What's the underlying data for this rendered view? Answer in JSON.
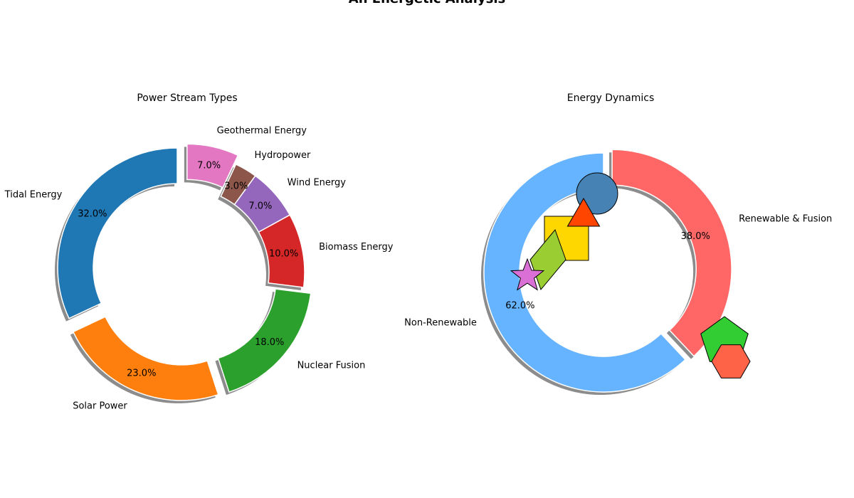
{
  "figure": {
    "title": "An Energetic Analysis"
  },
  "chart_data": [
    {
      "type": "pie",
      "donut": true,
      "title": "Power Stream Types",
      "categories": [
        "Tidal Energy",
        "Solar Power",
        "Nuclear Fusion",
        "Biomass Energy",
        "Wind Energy",
        "Hydropower",
        "Geothermal Energy"
      ],
      "values": [
        32,
        23,
        18,
        10,
        7,
        3,
        7
      ],
      "percent_labels": [
        "32.0%",
        "23.0%",
        "18.0%",
        "10.0%",
        "7.0%",
        "3.0%",
        "7.0%"
      ],
      "exploded": [
        true,
        true,
        true,
        false,
        false,
        false,
        true
      ],
      "colors": [
        "#1f77b4",
        "#ff7f0e",
        "#2ca02c",
        "#d62728",
        "#9467bd",
        "#8c564b",
        "#e377c2"
      ],
      "shadow": true,
      "start_angle_deg": 90,
      "direction": "counterclockwise"
    },
    {
      "type": "pie",
      "donut": true,
      "title": "Energy Dynamics",
      "categories": [
        "Non-Renewable",
        "Renewable & Fusion"
      ],
      "values": [
        62,
        38
      ],
      "percent_labels": [
        "62.0%",
        "38.0%"
      ],
      "exploded": [
        false,
        true
      ],
      "colors": [
        "#66b3ff",
        "#ff6666"
      ],
      "shadow": true,
      "start_angle_deg": 90,
      "direction": "counterclockwise",
      "decorations": [
        {
          "shape": "circle",
          "color": "#4682b4"
        },
        {
          "shape": "triangle",
          "color": "#ff4500"
        },
        {
          "shape": "square",
          "color": "#ffd700"
        },
        {
          "shape": "diamond",
          "color": "#9acd32"
        },
        {
          "shape": "star",
          "color": "#da70d6"
        },
        {
          "shape": "pentagon",
          "color": "#32cd32"
        },
        {
          "shape": "hexagon",
          "color": "#ff6347"
        }
      ]
    }
  ]
}
